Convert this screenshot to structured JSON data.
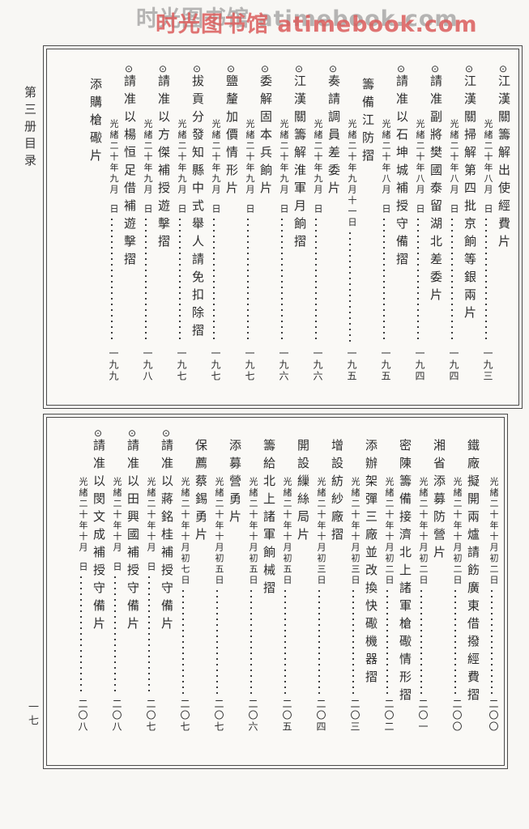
{
  "watermark": {
    "text": "时光图书馆 atimebook.com"
  },
  "sidebar": {
    "volume_label": "第三册目录",
    "folio_number": "一七"
  },
  "marker_glyph": "⊙",
  "sections": [
    {
      "id": "top",
      "wrapped_date": null,
      "entries": [
        {
          "marker": true,
          "title": "江漢關籌解出使經費片",
          "date": "光緒二十年八月",
          "blank_day": true,
          "page": "一九三"
        },
        {
          "marker": true,
          "title": "江漢關掃解第四批京餉等銀兩片",
          "date": "光緒二十年八月",
          "blank_day": true,
          "page": "一九四"
        },
        {
          "marker": true,
          "title": "請准副將樊國泰留湖北差委片",
          "date": "光緒二十年八月",
          "blank_day": true,
          "page": "一九四"
        },
        {
          "marker": true,
          "title": "請准以石坤城補授守備摺",
          "date": "光緒二十年八月",
          "blank_day": true,
          "page": "一九五"
        },
        {
          "marker": false,
          "title": "籌備江防摺",
          "date": "光緒二十年九月十一日",
          "blank_day": false,
          "page": "一九五"
        },
        {
          "marker": true,
          "title": "奏請調員差委片",
          "date": "光緒二十年九月",
          "blank_day": true,
          "page": "一九六"
        },
        {
          "marker": true,
          "title": "江漢關籌解淮軍月餉摺",
          "date": "光緒二十年九月",
          "blank_day": true,
          "page": "一九六"
        },
        {
          "marker": true,
          "title": "委解固本兵餉片",
          "date": "光緒二十年九月",
          "blank_day": true,
          "page": "一九七"
        },
        {
          "marker": true,
          "title": "鹽釐加價情形片",
          "date": "光緒二十年九月",
          "blank_day": true,
          "page": "一九七"
        },
        {
          "marker": true,
          "title": "拔貢分發知縣中式舉人請免扣除摺",
          "date": "光緒二十年九月",
          "blank_day": true,
          "page": "一九七"
        },
        {
          "marker": true,
          "title": "請准以方傑補授遊擊摺",
          "date": "光緒二十年九月",
          "blank_day": true,
          "page": "一九八"
        },
        {
          "marker": true,
          "title": "請准以楊恒足借補遊擊摺",
          "date": "光緒二十年九月",
          "blank_day": true,
          "page": "一九九"
        },
        {
          "marker": false,
          "title": "添購槍礮片",
          "date": null,
          "blank_day": false,
          "page": null
        }
      ]
    },
    {
      "id": "bottom",
      "wrapped_date": {
        "date": "光緒二十年十月初二日",
        "page": "二〇〇"
      },
      "entries": [
        {
          "marker": false,
          "title": "鐵廠擬開兩爐請飭廣東借撥經費摺",
          "date": "光緒二十年十月初二日",
          "blank_day": false,
          "page": "二〇〇"
        },
        {
          "marker": false,
          "title": "湘省添募防營片",
          "date": "光緒二十年十月初二日",
          "blank_day": false,
          "page": "二〇一"
        },
        {
          "marker": false,
          "title": "密陳籌備接濟北上諸軍槍礮情形摺",
          "date": "光緒二十年十月初二日",
          "blank_day": false,
          "page": "二〇二"
        },
        {
          "marker": false,
          "title": "添辦架彈三廠並改換快礮機器摺",
          "date": "光緒二十年十月初三日",
          "blank_day": false,
          "page": "二〇三"
        },
        {
          "marker": false,
          "title": "增設紡紗廠摺",
          "date": "光緒二十年十月初三日",
          "blank_day": false,
          "page": "二〇四"
        },
        {
          "marker": false,
          "title": "開設繅絲局片",
          "date": "光緒二十年十月初五日",
          "blank_day": false,
          "page": "二〇五"
        },
        {
          "marker": false,
          "title": "籌給北上諸軍餉械摺",
          "date": "光緒二十年十月初五日",
          "blank_day": false,
          "page": "二〇六"
        },
        {
          "marker": false,
          "title": "添募營勇片",
          "date": "光緒二十年十月初五日",
          "blank_day": false,
          "page": "二〇七"
        },
        {
          "marker": false,
          "title": "保薦蔡錫勇片",
          "date": "光緒二十年十月初七日",
          "blank_day": false,
          "page": "二〇七"
        },
        {
          "marker": true,
          "title": "請准以蔣銘桂補授守備片",
          "date": "光緒二十年十月",
          "blank_day": true,
          "page": "二〇七"
        },
        {
          "marker": true,
          "title": "請准以田興國補授守備片",
          "date": "光緒二十年十月",
          "blank_day": true,
          "page": "二〇八"
        },
        {
          "marker": true,
          "title": "請准以閔文成補授守備片",
          "date": "光緒二十年十月",
          "blank_day": true,
          "page": "二〇八"
        }
      ]
    }
  ]
}
